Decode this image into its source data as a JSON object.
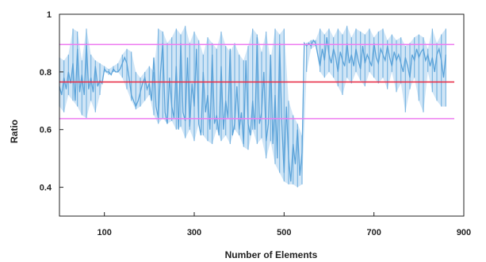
{
  "chart_data": {
    "type": "line",
    "title": "",
    "xlabel": "Number of Elements",
    "ylabel": "Ratio",
    "xlim": [
      0,
      900
    ],
    "ylim": [
      0.3,
      1.0
    ],
    "xticks": [
      100,
      300,
      500,
      700,
      900
    ],
    "yticks": [
      0.4,
      0.6,
      0.8,
      1.0
    ],
    "ytick_labels": [
      "0.4",
      "0.6",
      "0.8",
      "1"
    ],
    "grid": false,
    "legend": "none",
    "colors": {
      "series": "#5ba3d9",
      "mean": "#e8324b",
      "band": "#ee7df0",
      "axis": "#222222"
    },
    "series": [
      {
        "band_x": [
          0,
          10,
          20,
          30,
          40,
          50,
          60,
          70,
          80,
          90,
          100,
          110,
          120,
          130,
          140,
          150,
          160,
          170,
          180,
          190,
          200,
          210,
          220,
          230,
          240,
          250,
          260,
          270,
          280,
          290,
          300,
          310,
          320,
          330,
          340,
          350,
          360,
          370,
          380,
          390,
          400,
          410,
          420,
          430,
          440,
          450,
          460,
          470,
          480,
          490,
          500,
          510,
          520,
          530,
          540,
          550,
          560,
          570,
          580,
          590,
          600,
          610,
          620,
          630,
          640,
          650,
          660,
          670,
          680,
          690,
          700,
          710,
          720,
          730,
          740,
          750,
          760,
          770,
          780,
          790,
          800,
          810,
          820,
          830,
          840,
          850,
          860
        ],
        "band_low": [
          0.68,
          0.66,
          0.72,
          0.7,
          0.68,
          0.65,
          0.64,
          0.7,
          0.66,
          0.72,
          0.8,
          0.79,
          0.8,
          0.8,
          0.78,
          0.74,
          0.7,
          0.67,
          0.68,
          0.7,
          0.72,
          0.65,
          0.62,
          0.64,
          0.62,
          0.63,
          0.6,
          0.61,
          0.57,
          0.6,
          0.56,
          0.62,
          0.58,
          0.56,
          0.55,
          0.6,
          0.56,
          0.58,
          0.55,
          0.6,
          0.58,
          0.54,
          0.53,
          0.6,
          0.55,
          0.57,
          0.5,
          0.56,
          0.48,
          0.45,
          0.42,
          0.41,
          0.41,
          0.4,
          0.41,
          0.8,
          0.88,
          0.89,
          0.8,
          0.78,
          0.8,
          0.78,
          0.75,
          0.72,
          0.78,
          0.76,
          0.8,
          0.77,
          0.75,
          0.8,
          0.78,
          0.76,
          0.78,
          0.74,
          0.8,
          0.73,
          0.76,
          0.66,
          0.74,
          0.78,
          0.7,
          0.66,
          0.8,
          0.73,
          0.7,
          0.68,
          0.68
        ],
        "band_high": [
          0.85,
          0.84,
          0.86,
          0.95,
          0.94,
          0.84,
          0.95,
          0.86,
          0.84,
          0.83,
          0.82,
          0.81,
          0.82,
          0.83,
          0.86,
          0.88,
          0.87,
          0.8,
          0.78,
          0.8,
          0.82,
          0.8,
          0.95,
          0.94,
          0.9,
          0.92,
          0.95,
          0.93,
          0.96,
          0.9,
          0.94,
          0.91,
          0.86,
          0.92,
          0.9,
          0.88,
          0.94,
          0.89,
          0.87,
          0.9,
          0.86,
          0.84,
          0.89,
          0.95,
          0.93,
          0.87,
          0.94,
          0.84,
          0.95,
          0.93,
          0.95,
          0.7,
          0.65,
          0.62,
          0.58,
          0.9,
          0.91,
          0.91,
          0.95,
          0.93,
          0.95,
          0.92,
          0.95,
          0.93,
          0.96,
          0.92,
          0.95,
          0.94,
          0.93,
          0.95,
          0.92,
          0.94,
          0.95,
          0.91,
          0.93,
          0.91,
          0.92,
          0.89,
          0.9,
          0.92,
          0.93,
          0.92,
          0.88,
          0.95,
          0.9,
          0.93,
          0.95
        ],
        "line_x": [
          0,
          5,
          10,
          15,
          20,
          25,
          30,
          35,
          40,
          45,
          50,
          55,
          60,
          65,
          70,
          75,
          80,
          85,
          90,
          95,
          100,
          105,
          110,
          115,
          120,
          125,
          130,
          135,
          140,
          145,
          150,
          155,
          160,
          165,
          170,
          175,
          180,
          185,
          190,
          195,
          200,
          205,
          210,
          215,
          220,
          225,
          230,
          235,
          240,
          245,
          250,
          255,
          260,
          265,
          270,
          275,
          280,
          285,
          290,
          295,
          300,
          305,
          310,
          315,
          320,
          325,
          330,
          335,
          340,
          345,
          350,
          355,
          360,
          365,
          370,
          375,
          380,
          385,
          390,
          395,
          400,
          405,
          410,
          415,
          420,
          425,
          430,
          435,
          440,
          445,
          450,
          455,
          460,
          465,
          470,
          475,
          480,
          485,
          490,
          495,
          500,
          505,
          510,
          515,
          520,
          525,
          530,
          535,
          540,
          545,
          550,
          555,
          560,
          565,
          570,
          575,
          580,
          585,
          590,
          595,
          600,
          605,
          610,
          615,
          620,
          625,
          630,
          635,
          640,
          645,
          650,
          655,
          660,
          665,
          670,
          675,
          680,
          685,
          690,
          695,
          700,
          705,
          710,
          715,
          720,
          725,
          730,
          735,
          740,
          745,
          750,
          755,
          760,
          765,
          770,
          775,
          780,
          785,
          790,
          795,
          800,
          805,
          810,
          815,
          820,
          825,
          830,
          835,
          840,
          845,
          850,
          855,
          860
        ],
        "line_y": [
          0.75,
          0.72,
          0.78,
          0.74,
          0.8,
          0.76,
          0.83,
          0.7,
          0.88,
          0.73,
          0.79,
          0.72,
          0.9,
          0.74,
          0.78,
          0.73,
          0.82,
          0.75,
          0.77,
          0.76,
          0.81,
          0.8,
          0.8,
          0.79,
          0.81,
          0.8,
          0.8,
          0.81,
          0.83,
          0.85,
          0.83,
          0.78,
          0.72,
          0.7,
          0.68,
          0.7,
          0.73,
          0.76,
          0.78,
          0.74,
          0.76,
          0.7,
          0.85,
          0.68,
          0.64,
          0.8,
          0.9,
          0.66,
          0.62,
          0.78,
          0.68,
          0.64,
          0.82,
          0.6,
          0.9,
          0.66,
          0.63,
          0.85,
          0.61,
          0.76,
          0.68,
          0.88,
          0.62,
          0.58,
          0.8,
          0.66,
          0.72,
          0.6,
          0.86,
          0.62,
          0.65,
          0.58,
          0.82,
          0.6,
          0.7,
          0.64,
          0.88,
          0.58,
          0.62,
          0.75,
          0.6,
          0.66,
          0.55,
          0.84,
          0.62,
          0.58,
          0.7,
          0.6,
          0.92,
          0.62,
          0.66,
          0.8,
          0.56,
          0.62,
          0.86,
          0.55,
          0.72,
          0.5,
          0.9,
          0.62,
          0.45,
          0.68,
          0.5,
          0.42,
          0.55,
          0.48,
          0.6,
          0.44,
          0.52,
          0.9,
          0.89,
          0.9,
          0.89,
          0.91,
          0.9,
          0.86,
          0.82,
          0.88,
          0.84,
          0.92,
          0.86,
          0.83,
          0.88,
          0.85,
          0.8,
          0.87,
          0.84,
          0.82,
          0.9,
          0.83,
          0.86,
          0.82,
          0.88,
          0.84,
          0.81,
          0.89,
          0.83,
          0.86,
          0.84,
          0.82,
          0.9,
          0.85,
          0.83,
          0.88,
          0.86,
          0.84,
          0.89,
          0.85,
          0.82,
          0.87,
          0.84,
          0.86,
          0.83,
          0.8,
          0.85,
          0.82,
          0.78,
          0.86,
          0.84,
          0.88,
          0.85,
          0.87,
          0.88,
          0.84,
          0.86,
          0.82,
          0.85,
          0.8,
          0.86,
          0.88,
          0.84,
          0.78,
          0.86
        ]
      }
    ],
    "reference_lines": [
      {
        "kind": "mean",
        "y": 0.765
      },
      {
        "kind": "upper",
        "y": 0.895
      },
      {
        "kind": "lower",
        "y": 0.638
      }
    ]
  }
}
